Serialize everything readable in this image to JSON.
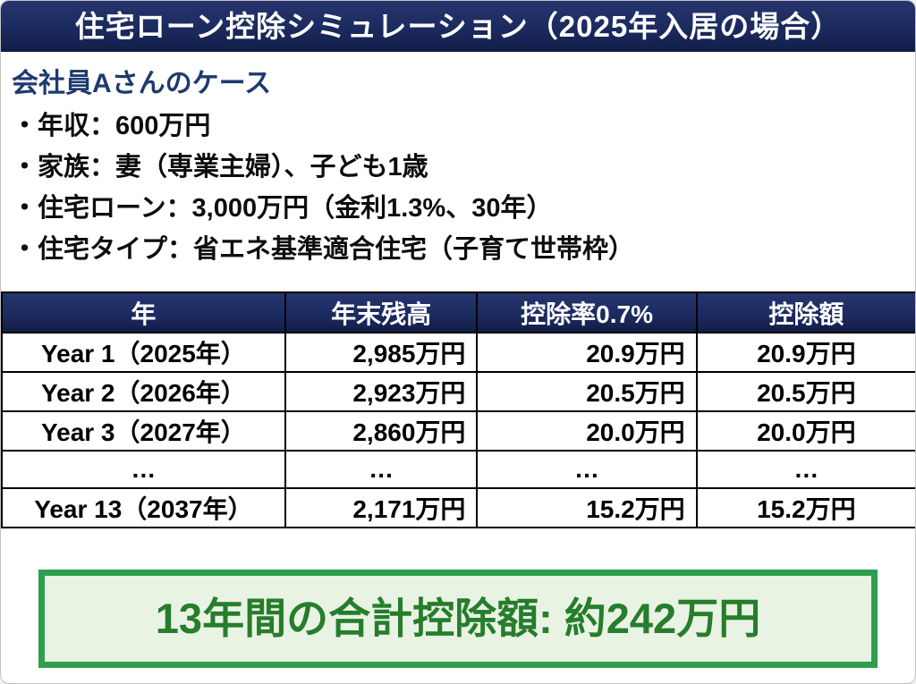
{
  "header": {
    "title": "住宅ローン控除シミュレーション（2025年入居の場合）"
  },
  "case": {
    "title": "会社員Aさんのケース",
    "bullets": [
      "・年収：600万円",
      "・家族：妻（専業主婦）、子ども1歳",
      "・住宅ローン：3,000万円（金利1.3%、30年）",
      "・住宅タイプ：省エネ基準適合住宅（子育て世帯枠）"
    ]
  },
  "table": {
    "headers": [
      "年",
      "年末残高",
      "控除率0.7%",
      "控除額"
    ],
    "rows": [
      [
        "Year 1（2025年）",
        "2,985万円",
        "20.9万円",
        "20.9万円"
      ],
      [
        "Year 2（2026年）",
        "2,923万円",
        "20.5万円",
        "20.5万円"
      ],
      [
        "Year 3（2027年）",
        "2,860万円",
        "20.0万円",
        "20.0万円"
      ],
      [
        "…",
        "…",
        "…",
        "…"
      ],
      [
        "Year 13（2037年）",
        "2,171万円",
        "15.2万円",
        "15.2万円"
      ]
    ]
  },
  "summary": {
    "text": "13年間の合計控除額: 約242万円"
  },
  "colors": {
    "navy": "#1b2a5e",
    "navy_light": "#26356e",
    "navy_dark": "#121d48",
    "navy_text": "#1e3a6e",
    "green_border": "#2f9e4f",
    "green_bg": "#e9f3e4",
    "green_text": "#267d2b"
  }
}
